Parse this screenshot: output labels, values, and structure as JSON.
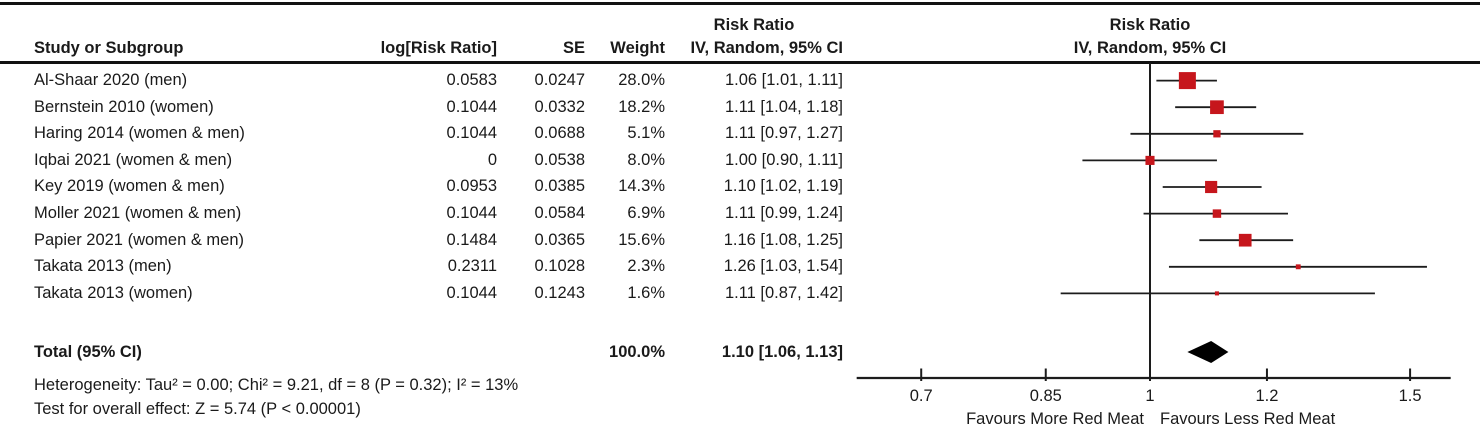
{
  "figure": {
    "columns": {
      "study": "Study or Subgroup",
      "logrr": "log[Risk Ratio]",
      "se": "SE",
      "weight": "Weight",
      "ci_header_line1": "Risk Ratio",
      "ci_header_line2": "IV, Random, 95% CI",
      "plot_header_line1": "Risk Ratio",
      "plot_header_line2": "IV, Random, 95% CI"
    },
    "total_row": {
      "label": "Total (95% CI)",
      "weight": "100.0%",
      "ci_text": "1.10 [1.06, 1.13]"
    },
    "heterogeneity": "Heterogeneity: Tau² = 0.00; Chi² = 9.21, df = 8 (P = 0.32); I² = 13%",
    "overall_effect": "Test for overall effect: Z = 5.74 (P < 0.00001)",
    "favours_left": "Favours More Red Meat",
    "favours_right": "Favours Less Red Meat"
  },
  "chart_data": {
    "type": "forest",
    "effect_measure": "Risk Ratio",
    "model": "IV, Random, 95% CI",
    "x_scale": "log",
    "axis_ticks": [
      "0.7",
      "0.85",
      "1",
      "1.2",
      "1.5"
    ],
    "axis_tick_values": [
      0.7,
      0.85,
      1,
      1.2,
      1.5
    ],
    "axis_range": [
      0.633,
      1.598
    ],
    "null_line": 1,
    "marker_color": "#c6161c",
    "diamond_color": "#000000",
    "studies": [
      {
        "name": "Al-Shaar 2020 (men)",
        "log_rr": "0.0583",
        "se": "0.0247",
        "weight": "28.0%",
        "weight_pct": 28.0,
        "rr": 1.06,
        "ci_low": 1.01,
        "ci_high": 1.11,
        "ci_text": "1.06 [1.01, 1.11]"
      },
      {
        "name": "Bernstein 2010 (women)",
        "log_rr": "0.1044",
        "se": "0.0332",
        "weight": "18.2%",
        "weight_pct": 18.2,
        "rr": 1.11,
        "ci_low": 1.04,
        "ci_high": 1.18,
        "ci_text": "1.11 [1.04, 1.18]"
      },
      {
        "name": "Haring 2014 (women & men)",
        "log_rr": "0.1044",
        "se": "0.0688",
        "weight": "5.1%",
        "weight_pct": 5.1,
        "rr": 1.11,
        "ci_low": 0.97,
        "ci_high": 1.27,
        "ci_text": "1.11 [0.97, 1.27]"
      },
      {
        "name": "Iqbai 2021 (women & men)",
        "log_rr": "0",
        "se": "0.0538",
        "weight": "8.0%",
        "weight_pct": 8.0,
        "rr": 1.0,
        "ci_low": 0.9,
        "ci_high": 1.11,
        "ci_text": "1.00 [0.90, 1.11]"
      },
      {
        "name": "Key 2019 (women & men)",
        "log_rr": "0.0953",
        "se": "0.0385",
        "weight": "14.3%",
        "weight_pct": 14.3,
        "rr": 1.1,
        "ci_low": 1.02,
        "ci_high": 1.19,
        "ci_text": "1.10 [1.02, 1.19]"
      },
      {
        "name": "Moller 2021 (women & men)",
        "log_rr": "0.1044",
        "se": "0.0584",
        "weight": "6.9%",
        "weight_pct": 6.9,
        "rr": 1.11,
        "ci_low": 0.99,
        "ci_high": 1.24,
        "ci_text": "1.11 [0.99, 1.24]"
      },
      {
        "name": "Papier 2021 (women & men)",
        "log_rr": "0.1484",
        "se": "0.0365",
        "weight": "15.6%",
        "weight_pct": 15.6,
        "rr": 1.16,
        "ci_low": 1.08,
        "ci_high": 1.25,
        "ci_text": "1.16 [1.08, 1.25]"
      },
      {
        "name": "Takata 2013 (men)",
        "log_rr": "0.2311",
        "se": "0.1028",
        "weight": "2.3%",
        "weight_pct": 2.3,
        "rr": 1.26,
        "ci_low": 1.03,
        "ci_high": 1.54,
        "ci_text": "1.26 [1.03, 1.54]"
      },
      {
        "name": "Takata 2013 (women)",
        "log_rr": "0.1044",
        "se": "0.1243",
        "weight": "1.6%",
        "weight_pct": 1.6,
        "rr": 1.11,
        "ci_low": 0.87,
        "ci_high": 1.42,
        "ci_text": "1.11 [0.87, 1.42]"
      }
    ],
    "total": {
      "rr": 1.1,
      "ci_low": 1.06,
      "ci_high": 1.13,
      "weight_pct": 100.0
    }
  }
}
